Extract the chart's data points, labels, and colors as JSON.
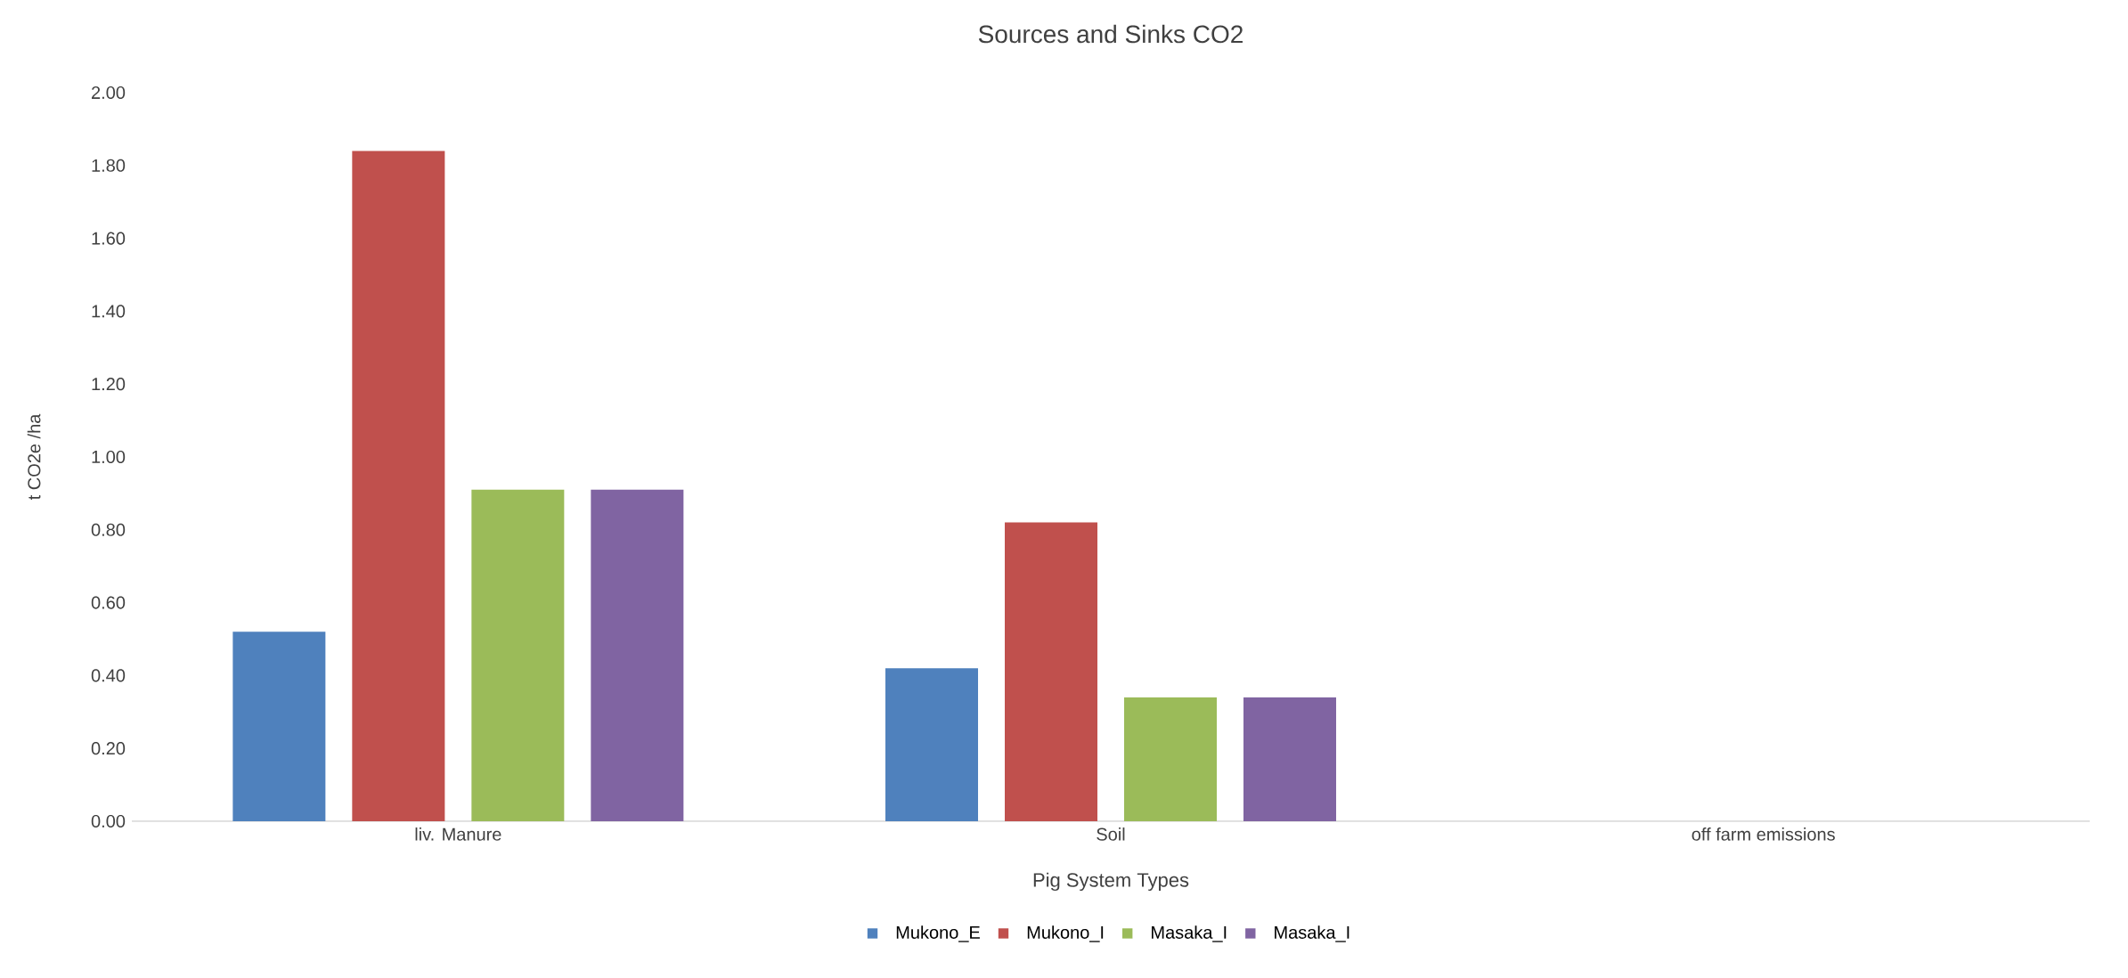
{
  "chart_data": {
    "type": "bar",
    "title": "Sources and Sinks CO2",
    "xlabel": "Pig System Types",
    "ylabel": "t CO2e /ha",
    "categories": [
      "liv. Manure",
      "Soil",
      "off farm emissions"
    ],
    "series": [
      {
        "name": "Mukono_E",
        "color": "#4f81bd",
        "values": [
          0.52,
          0.42,
          0
        ]
      },
      {
        "name": "Mukono_I",
        "color": "#c0504d",
        "values": [
          1.84,
          0.82,
          0
        ]
      },
      {
        "name": "Masaka_I",
        "color": "#9bbb59",
        "values": [
          0.91,
          0.34,
          0
        ]
      },
      {
        "name": "Masaka_I",
        "color": "#8064a2",
        "values": [
          0.91,
          0.34,
          0
        ]
      }
    ],
    "ylim": [
      0,
      2
    ],
    "yticks": [
      {
        "value": 0,
        "label": "0.00"
      },
      {
        "value": 0.2,
        "label": "0.20"
      },
      {
        "value": 0.4,
        "label": "0.40"
      },
      {
        "value": 0.6,
        "label": "0.60"
      },
      {
        "value": 0.8,
        "label": "0.80"
      },
      {
        "value": 1.0,
        "label": "1.00"
      },
      {
        "value": 1.2,
        "label": "1.20"
      },
      {
        "value": 1.4,
        "label": "1.40"
      },
      {
        "value": 1.6,
        "label": "1.60"
      },
      {
        "value": 1.8,
        "label": "1.80"
      },
      {
        "value": 2.0,
        "label": "2.00"
      }
    ],
    "legend": "bottom"
  }
}
